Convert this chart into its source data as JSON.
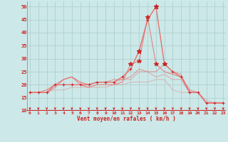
{
  "xlabel": "Vent moyen/en rafales ( km/h )",
  "x": [
    0,
    1,
    2,
    3,
    4,
    5,
    6,
    7,
    8,
    9,
    10,
    11,
    12,
    13,
    14,
    15,
    16,
    17,
    18,
    19,
    20,
    21,
    22,
    23
  ],
  "line1": [
    17,
    17,
    17,
    20,
    20,
    20,
    20,
    20,
    21,
    21,
    21,
    23,
    26,
    33,
    45,
    50,
    28,
    25,
    23,
    17,
    17,
    13,
    13,
    13
  ],
  "line2": [
    17,
    17,
    17,
    19,
    22,
    23,
    20,
    19,
    20,
    20,
    20,
    21,
    28,
    29,
    46,
    28,
    25,
    24,
    23,
    18,
    17,
    13,
    13,
    13
  ],
  "line3": [
    17,
    17,
    18,
    20,
    22,
    23,
    21,
    20,
    21,
    21,
    22,
    22,
    23,
    26,
    25,
    25,
    28,
    25,
    24,
    17,
    17,
    13,
    13,
    13
  ],
  "line4": [
    17,
    17,
    18,
    20,
    22,
    23,
    21,
    20,
    21,
    21,
    21,
    22,
    22,
    25,
    25,
    23,
    24,
    22,
    22,
    17,
    17,
    13,
    13,
    13
  ],
  "line5": [
    17,
    17,
    17,
    18,
    18,
    19,
    19,
    19,
    19,
    19,
    20,
    20,
    21,
    21,
    21,
    22,
    22,
    18,
    17,
    17,
    17,
    14,
    13,
    13
  ],
  "bg_color": "#cce8e8",
  "grid_color": "#aacccc",
  "line_color": "#e87070",
  "tick_color": "#cc2222",
  "label_color": "#cc2222",
  "ylim": [
    10,
    52
  ],
  "yticks": [
    10,
    15,
    20,
    25,
    30,
    35,
    40,
    45,
    50
  ],
  "xlim": [
    -0.3,
    23.3
  ]
}
